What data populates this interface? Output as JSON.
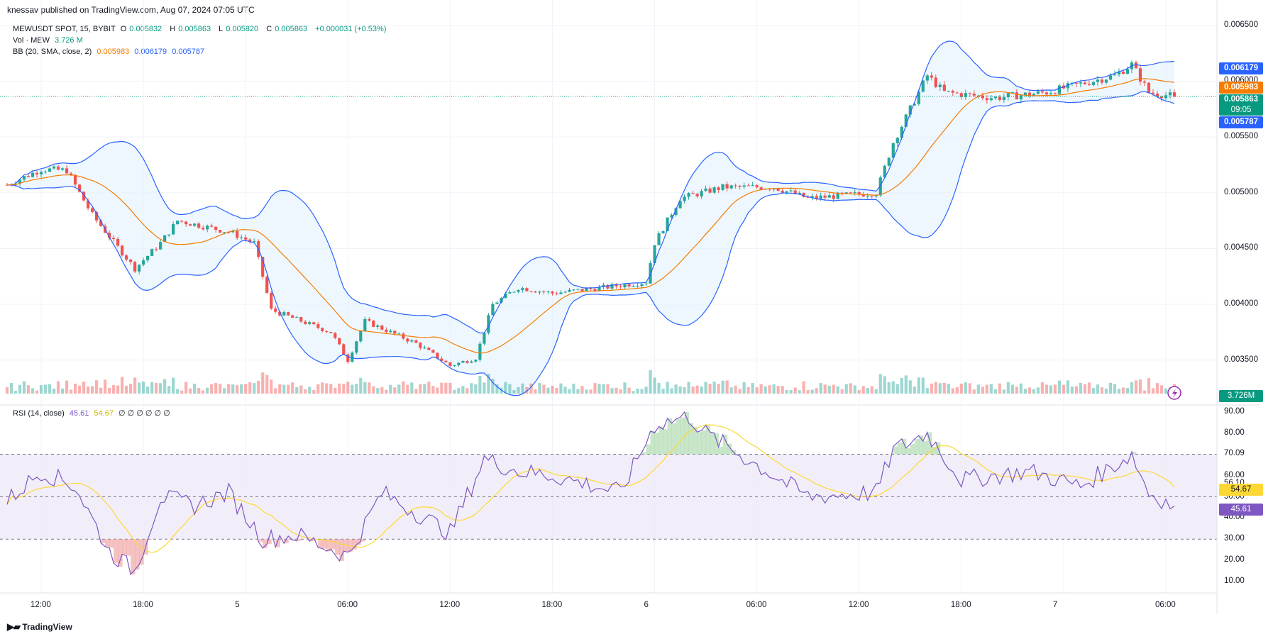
{
  "header": {
    "published": "knessav published on TradingView.com, Aug 07, 2024 07:05 UTC"
  },
  "legend_main": {
    "symbol": "MEWUSDT SPOT, 15, BYBIT",
    "o_label": "O",
    "o": "0.005832",
    "h_label": "H",
    "h": "0.005863",
    "l_label": "L",
    "l": "0.005820",
    "c_label": "C",
    "c": "0.005863",
    "change": "+0.000031 (+0.53%)"
  },
  "legend_vol": {
    "label": "Vol · MEW",
    "value": "3.726 M"
  },
  "legend_bb": {
    "label": "BB (20, SMA, close, 2)",
    "basis": "0.005983",
    "upper": "0.006179",
    "lower": "0.005787"
  },
  "legend_rsi": {
    "label": "RSI (14, close)",
    "rsi": "45.61",
    "ma": "54.67",
    "extras": "∅ ∅ ∅ ∅ ∅ ∅"
  },
  "price_axis": [
    "0.006500",
    "0.006000",
    "0.005500",
    "0.005000",
    "0.004500",
    "0.004000",
    "0.003500"
  ],
  "rsi_axis": [
    "90.00",
    "80.00",
    "70.09",
    "60.00",
    "56.10",
    "50.00",
    "40.00",
    "30.00",
    "20.00",
    "10.00"
  ],
  "time_axis": [
    "12:00",
    "18:00",
    "5",
    "06:00",
    "12:00",
    "18:00",
    "6",
    "06:00",
    "12:00",
    "18:00",
    "7",
    "06:00"
  ],
  "badges": {
    "upper": "0.006179",
    "basis": "0.005983",
    "last": "0.005863",
    "countdown": "09:05",
    "lower": "0.005787",
    "volume": "3.726M",
    "rsi_ma": "54.67",
    "rsi": "45.61"
  },
  "colors": {
    "up": "#26a69a",
    "down": "#ef5350",
    "bb_band": "#2962ff",
    "bb_basis": "#f57c00",
    "bb_fill": "#e3f2fd",
    "rsi_line": "#7e57c2",
    "rsi_ma": "#fdd835",
    "rsi_band": "#ede7f6"
  },
  "footer": {
    "brand": "TradingView"
  },
  "chart_data": {
    "type": "candlestick",
    "symbol": "MEWUSDT SPOT",
    "interval": "15",
    "ylim": [
      0.0032,
      0.0066
    ],
    "close_keypoints": [
      [
        "Aug 04 10:00",
        0.00507
      ],
      [
        "Aug 04 12:00",
        0.00521
      ],
      [
        "Aug 04 13:30",
        0.0052
      ],
      [
        "Aug 04 15:00",
        0.0048
      ],
      [
        "Aug 04 17:30",
        0.00432
      ],
      [
        "Aug 04 19:00",
        0.00455
      ],
      [
        "Aug 04 20:00",
        0.00475
      ],
      [
        "Aug 04 23:00",
        0.00465
      ],
      [
        "Aug 05 00:30",
        0.00455
      ],
      [
        "Aug 05 01:30",
        0.00395
      ],
      [
        "Aug 05 05:00",
        0.00375
      ],
      [
        "Aug 05 06:00",
        0.0035
      ],
      [
        "Aug 05 07:00",
        0.00385
      ],
      [
        "Aug 05 10:00",
        0.00365
      ],
      [
        "Aug 05 12:00",
        0.00345
      ],
      [
        "Aug 05 13:30",
        0.00352
      ],
      [
        "Aug 05 14:30",
        0.004
      ],
      [
        "Aug 05 16:00",
        0.00415
      ],
      [
        "Aug 05 18:00",
        0.0041
      ],
      [
        "Aug 05 21:00",
        0.00415
      ],
      [
        "Aug 05 23:30",
        0.0042
      ],
      [
        "Aug 06 00:00",
        0.00455
      ],
      [
        "Aug 06 01:30",
        0.00495
      ],
      [
        "Aug 06 04:00",
        0.00505
      ],
      [
        "Aug 06 07:00",
        0.00505
      ],
      [
        "Aug 06 09:00",
        0.00495
      ],
      [
        "Aug 06 13:00",
        0.005
      ],
      [
        "Aug 06 14:00",
        0.00545
      ],
      [
        "Aug 06 16:00",
        0.00605
      ],
      [
        "Aug 06 17:00",
        0.0059
      ],
      [
        "Aug 06 20:00",
        0.00585
      ],
      [
        "Aug 06 23:00",
        0.0059
      ],
      [
        "Aug 07 03:00",
        0.00605
      ],
      [
        "Aug 07 04:00",
        0.00615
      ],
      [
        "Aug 07 05:00",
        0.0059
      ],
      [
        "Aug 07 06:30",
        0.005863
      ]
    ],
    "bollinger": {
      "period": 20,
      "basis": 0.005983,
      "upper": 0.006179,
      "lower": 0.005787
    },
    "volume_last": 3726000,
    "rsi": {
      "period": 14,
      "value": 45.61,
      "ma": 54.67,
      "upper_band": 70.09,
      "mid": 50,
      "lower_band": 30,
      "ylim": [
        5,
        92
      ]
    },
    "rsi_keypoints": [
      [
        "Aug 04 10:00",
        48
      ],
      [
        "Aug 04 12:00",
        62
      ],
      [
        "Aug 04 14:00",
        55
      ],
      [
        "Aug 04 16:00",
        24
      ],
      [
        "Aug 04 17:30",
        15
      ],
      [
        "Aug 04 19:00",
        50
      ],
      [
        "Aug 04 21:00",
        46
      ],
      [
        "Aug 04 23:00",
        52
      ],
      [
        "Aug 05 01:00",
        30
      ],
      [
        "Aug 05 03:00",
        32
      ],
      [
        "Aug 05 06:00",
        22
      ],
      [
        "Aug 05 08:00",
        52
      ],
      [
        "Aug 05 12:00",
        33
      ],
      [
        "Aug 05 14:00",
        68
      ],
      [
        "Aug 05 16:00",
        62
      ],
      [
        "Aug 05 18:00",
        60
      ],
      [
        "Aug 05 22:00",
        52
      ],
      [
        "Aug 06 00:00",
        84
      ],
      [
        "Aug 06 02:00",
        88
      ],
      [
        "Aug 06 03:00",
        80
      ],
      [
        "Aug 06 05:00",
        70
      ],
      [
        "Aug 06 09:00",
        50
      ],
      [
        "Aug 06 13:00",
        52
      ],
      [
        "Aug 06 14:00",
        72
      ],
      [
        "Aug 06 16:00",
        80
      ],
      [
        "Aug 06 18:00",
        58
      ],
      [
        "Aug 06 22:00",
        62
      ],
      [
        "Aug 07 01:00",
        55
      ],
      [
        "Aug 07 04:00",
        70
      ],
      [
        "Aug 07 05:00",
        52
      ],
      [
        "Aug 07 06:30",
        45.61
      ]
    ]
  }
}
